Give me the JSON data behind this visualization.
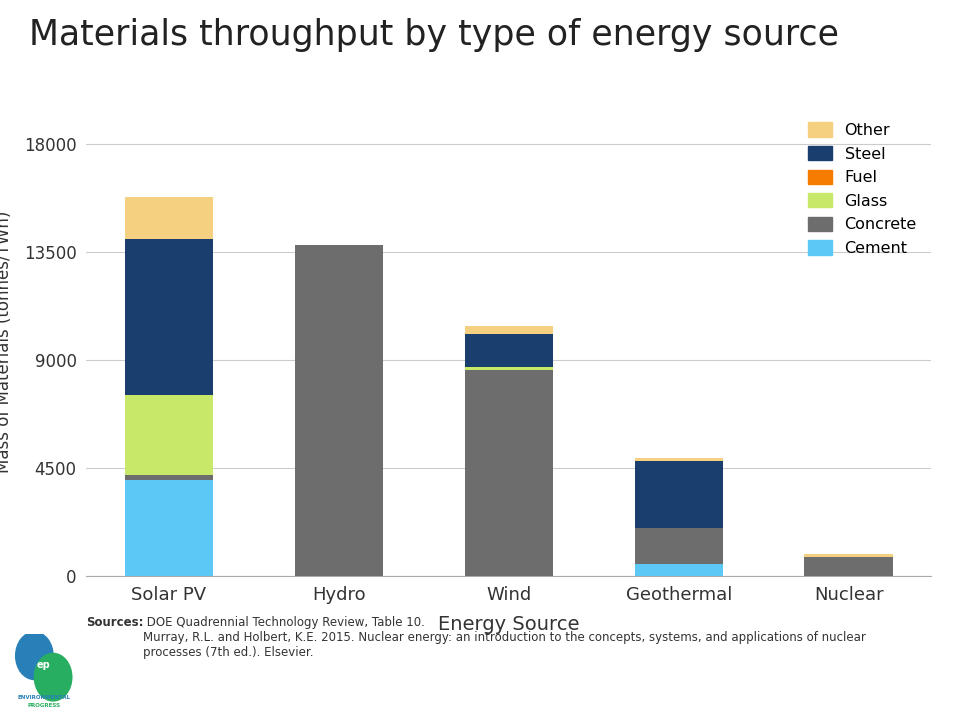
{
  "title": "Materials throughput by type of energy source",
  "xlabel": "Energy Source",
  "ylabel": "Mass of Materials (tonnes/TWh)",
  "categories": [
    "Solar PV",
    "Hydro",
    "Wind",
    "Geothermal",
    "Nuclear"
  ],
  "stack_order": [
    "Cement",
    "Concrete",
    "Glass",
    "Fuel",
    "Steel",
    "Other"
  ],
  "materials": {
    "Cement": [
      4000,
      0,
      0,
      500,
      0
    ],
    "Concrete": [
      200,
      13800,
      8600,
      1500,
      800
    ],
    "Glass": [
      3350,
      0,
      100,
      0,
      0
    ],
    "Fuel": [
      0,
      0,
      0,
      0,
      0
    ],
    "Steel": [
      6500,
      0,
      1400,
      2800,
      0
    ],
    "Other": [
      1750,
      0,
      300,
      100,
      100
    ]
  },
  "colors": {
    "Cement": "#5BC8F5",
    "Concrete": "#6D6D6D",
    "Glass": "#C8E86A",
    "Fuel": "#F57C00",
    "Steel": "#1A3F6F",
    "Other": "#F5D080"
  },
  "ylim": [
    0,
    19500
  ],
  "yticks": [
    0,
    4500,
    9000,
    13500,
    18000
  ],
  "legend_order": [
    "Other",
    "Steel",
    "Fuel",
    "Glass",
    "Concrete",
    "Cement"
  ],
  "source_bold": "Sources:",
  "source_text": " DOE Quadrennial Technology Review, Table 10.\nMurray, R.L. and Holbert, K.E. 2015. Nuclear energy: an introduction to the concepts, systems, and applications of nuclear\nprocesses (7th ed.). Elsevier.",
  "background_color": "#FFFFFF",
  "grid_color": "#CCCCCC",
  "bar_width": 0.52
}
